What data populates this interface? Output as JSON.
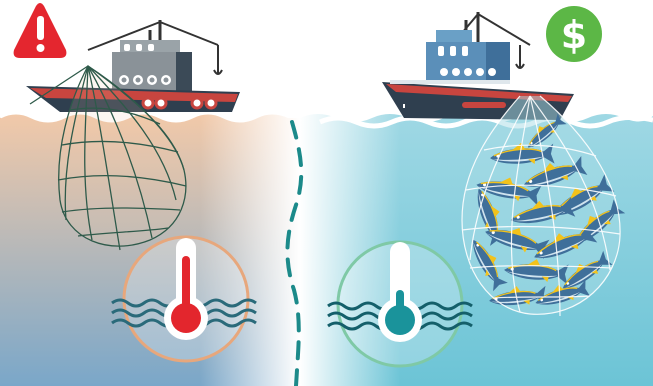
{
  "scene": {
    "left_panel": {
      "ocean_top": "#f2c9a9",
      "ocean_bottom": "#7aa7c9",
      "thermometer_fill": "#e3262d",
      "dial_ring": "#e7a77c",
      "badge_color": "#e4262f",
      "badge_icon": "warning-icon",
      "net_state": "empty"
    },
    "right_panel": {
      "ocean_top": "#9fd8e4",
      "ocean_bottom": "#6cc4d6",
      "thermometer_fill": "#1a939b",
      "dial_ring": "#7fc9a6",
      "badge_color": "#5cb746",
      "badge_icon": "dollar-icon",
      "net_state": "full-of-tuna"
    },
    "divider_color": "#1c8a8a",
    "water_line_color": "#ffffff",
    "boat": {
      "hull_color": "#2f3f4f",
      "hull_stripe": "#c8453f",
      "cabin_left": "#8a9298",
      "cabin_right": "#5b8fb9"
    }
  }
}
